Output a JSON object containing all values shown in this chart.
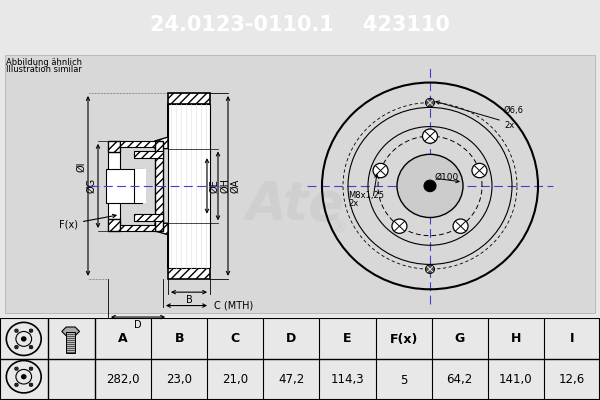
{
  "title_part_number": "24.0123-0110.1",
  "title_ref_number": "423110",
  "header_bg": "#0000cc",
  "header_text_color": "#ffffff",
  "bg_color": "#e8e8e8",
  "diagram_bg": "#d0d0d0",
  "table_headers": [
    "A",
    "B",
    "C",
    "D",
    "E",
    "F(x)",
    "G",
    "H",
    "I"
  ],
  "table_values": [
    "282,0",
    "23,0",
    "21,0",
    "47,2",
    "114,3",
    "5",
    "64,2",
    "141,0",
    "12,6"
  ],
  "line_color": "#000000",
  "centerline_color": "#4040cc",
  "watermark_color": "#c8c8c8"
}
